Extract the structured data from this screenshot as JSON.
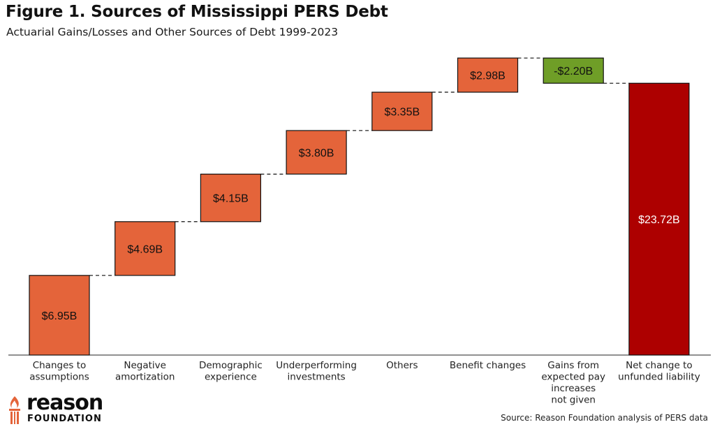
{
  "header": {
    "title": "Figure 1. Sources of Mississippi PERS Debt",
    "subtitle": "Actuarial Gains/Losses and Other Sources of Debt 1999-2023"
  },
  "footer": {
    "source": "Source: Reason Foundation analysis of PERS data",
    "logo_word": "reason",
    "logo_sub": "FOUNDATION"
  },
  "colors": {
    "increase": "#E4643A",
    "decrease": "#6F9E27",
    "total": "#AD0000",
    "connector": "#111111"
  },
  "chart_data": {
    "type": "waterfall",
    "title": "Figure 1. Sources of Mississippi PERS Debt",
    "subtitle": "Actuarial Gains/Losses and Other Sources of Debt 1999-2023",
    "xlabel": "",
    "ylabel": "",
    "unit": "$B",
    "ylim": [
      0,
      25.2
    ],
    "grid": false,
    "categories": [
      [
        "Changes to",
        "assumptions"
      ],
      [
        "Negative",
        "amortization"
      ],
      [
        "Demographic",
        "experience"
      ],
      [
        "Underperforming",
        "investments"
      ],
      [
        "Others"
      ],
      [
        "Benefit changes"
      ],
      [
        "Gains from",
        "expected pay",
        "increases",
        "not given"
      ],
      [
        "Net change to",
        "unfunded liability"
      ]
    ],
    "values": [
      6.95,
      4.69,
      4.15,
      3.8,
      3.35,
      2.98,
      -2.2,
      23.72
    ],
    "labels": [
      "$6.95B",
      "$4.69B",
      "$4.15B",
      "$3.80B",
      "$3.35B",
      "$2.98B",
      "-$2.20B",
      "$23.72B"
    ],
    "kinds": [
      "increase",
      "increase",
      "increase",
      "increase",
      "increase",
      "increase",
      "decrease",
      "total"
    ]
  }
}
